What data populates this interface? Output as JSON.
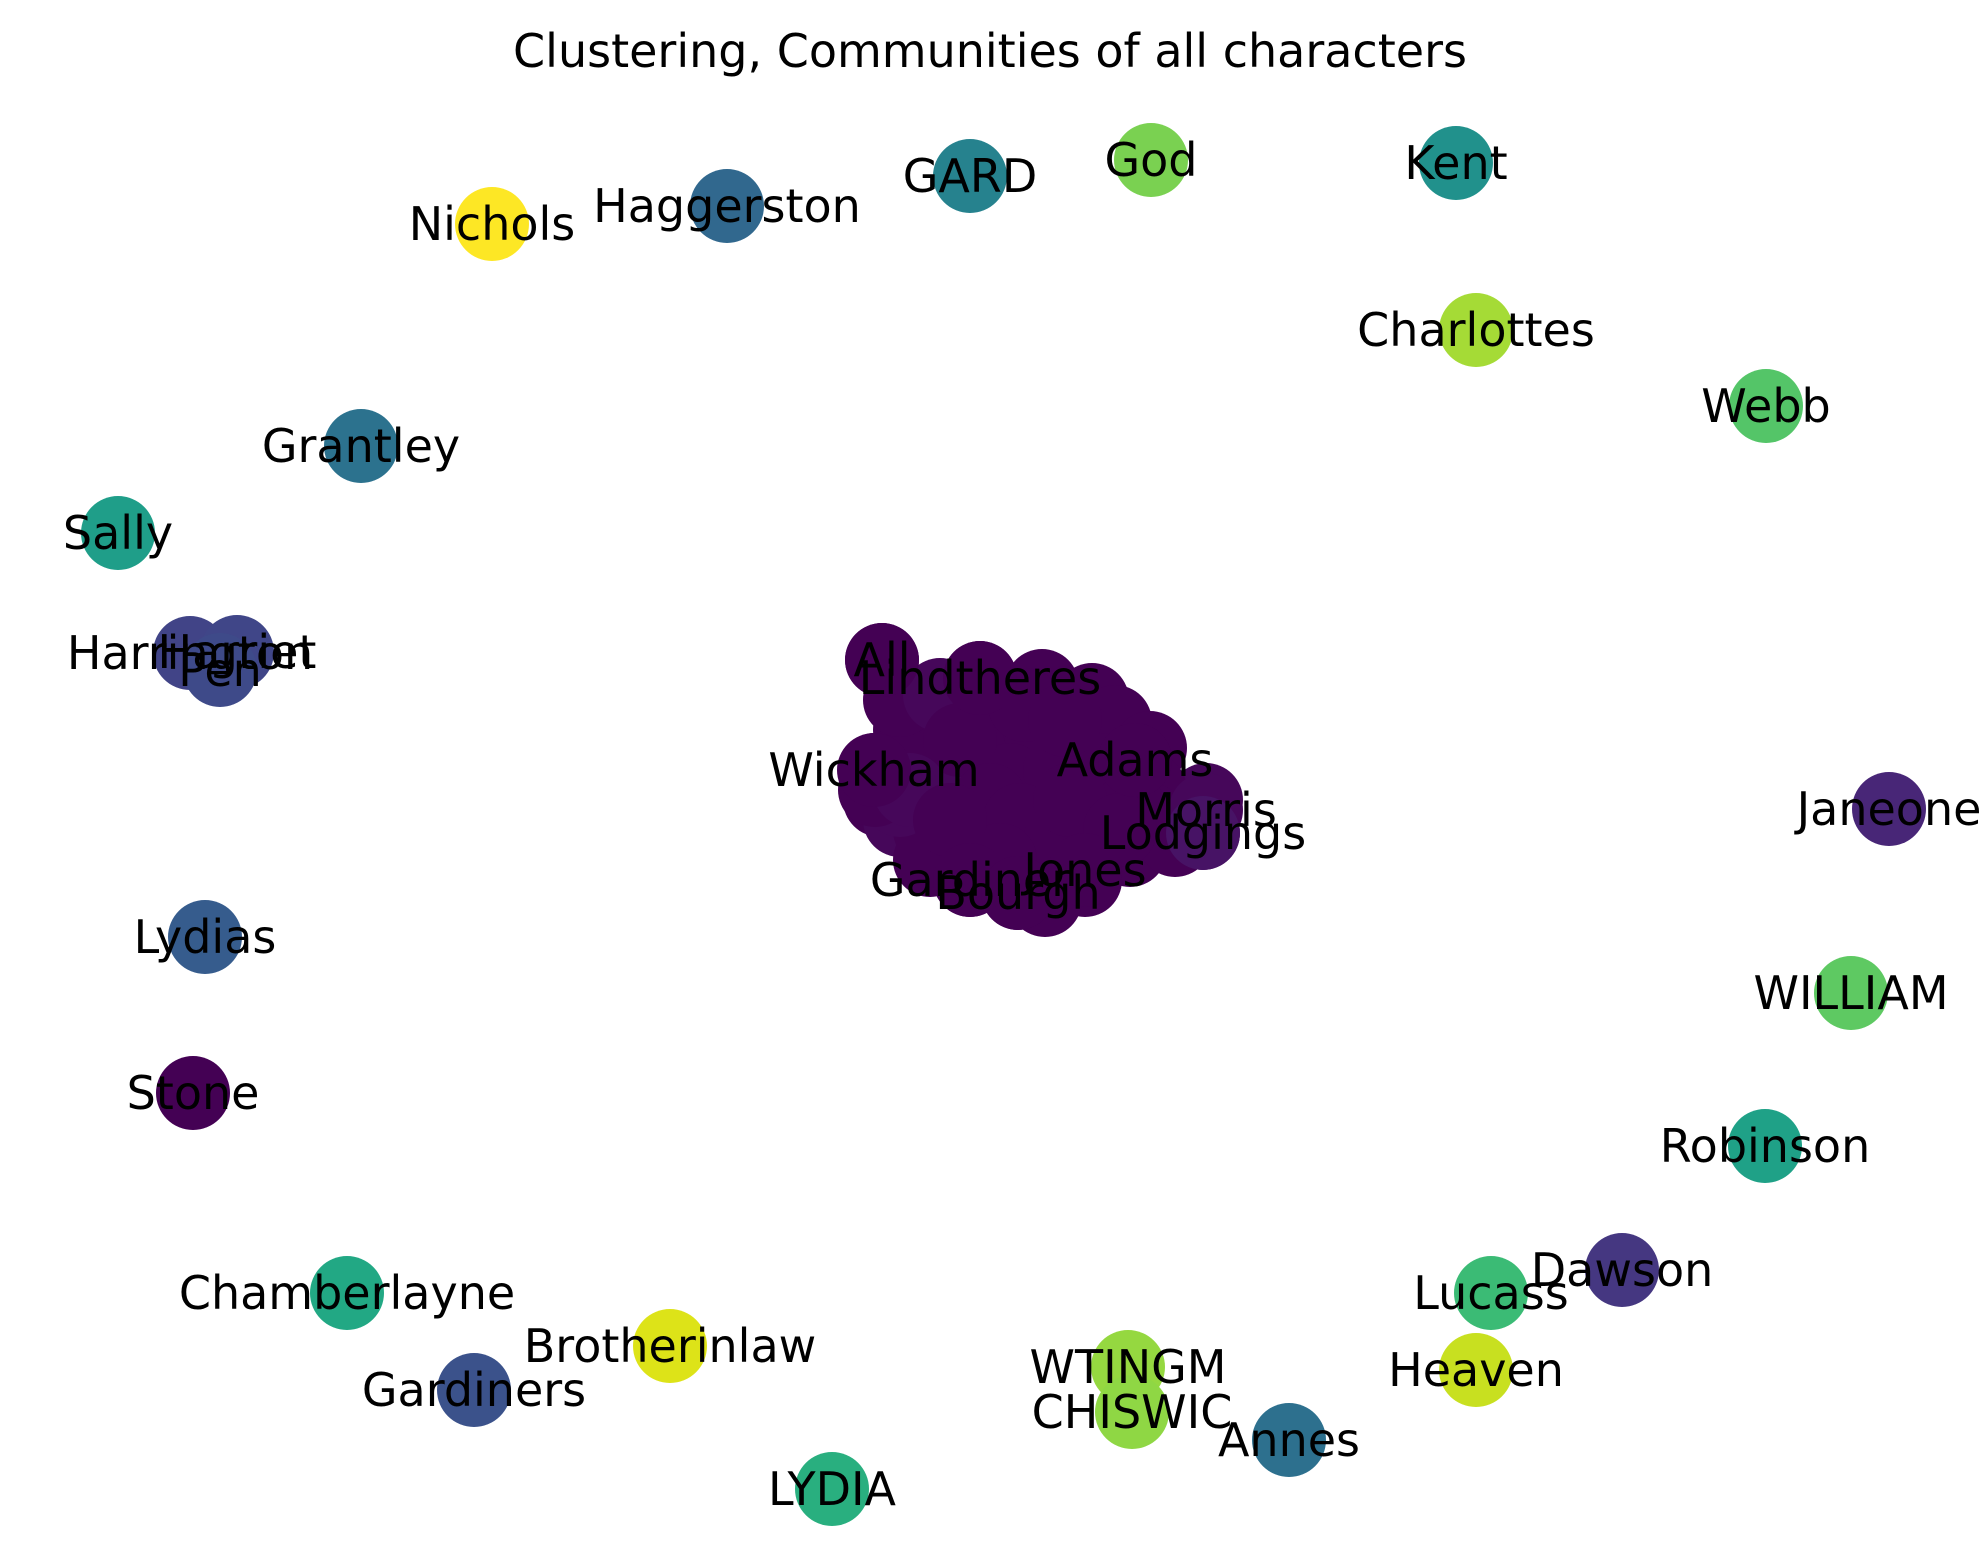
{
  "title": "Clustering, Communities of all characters",
  "nodes": [
    {
      "label": "Nichols",
      "color": "#fde725"
    },
    {
      "label": "Haggerston",
      "color": "#31688e"
    },
    {
      "label": "GARD",
      "color": "#26828e"
    },
    {
      "label": "God",
      "color": "#7ad151"
    },
    {
      "label": "Kent",
      "color": "#21918c"
    },
    {
      "label": "Charlottes",
      "color": "#a5db36"
    },
    {
      "label": "Webb",
      "color": "#54c568"
    },
    {
      "label": "Grantley",
      "color": "#2c728e"
    },
    {
      "label": "Sally",
      "color": "#1f9e89"
    },
    {
      "label": "Harrington",
      "color": "#414487"
    },
    {
      "label": "Harriet",
      "color": "#404688"
    },
    {
      "label": "Pen",
      "color": "#3e4a89"
    },
    {
      "label": "Janeone",
      "color": "#482677"
    },
    {
      "label": "Lydias",
      "color": "#365c8d"
    },
    {
      "label": "WILLIAM",
      "color": "#5ec962"
    },
    {
      "label": "Stone",
      "color": "#440154"
    },
    {
      "label": "Robinson",
      "color": "#1fa187"
    },
    {
      "label": "Dawson",
      "color": "#453781"
    },
    {
      "label": "Lucass",
      "color": "#3bbb75"
    },
    {
      "label": "Chamberlayne",
      "color": "#22a884"
    },
    {
      "label": "Heaven",
      "color": "#c8e020"
    },
    {
      "label": "Brotherinlaw",
      "color": "#dde318"
    },
    {
      "label": "WTINGM",
      "color": "#95d840"
    },
    {
      "label": "CHISWIC",
      "color": "#8fd744"
    },
    {
      "label": "Gardiners",
      "color": "#3b528b"
    },
    {
      "label": "Annes",
      "color": "#2d708e"
    },
    {
      "label": "LYDIA",
      "color": "#29af7f"
    },
    {
      "label": "All",
      "color": "#440154"
    },
    {
      "label": "Lindtheres",
      "color": "#440154"
    },
    {
      "label": "Wickham",
      "color": "#440154"
    },
    {
      "label": "Adams",
      "color": "#440154"
    },
    {
      "label": "Morris",
      "color": "#46075a"
    },
    {
      "label": "Lodgings",
      "color": "#471365"
    },
    {
      "label": "Gardiner",
      "color": "#440154"
    },
    {
      "label": "Bourgh",
      "color": "#440154"
    },
    {
      "label": "Jones",
      "color": "#440154"
    }
  ]
}
